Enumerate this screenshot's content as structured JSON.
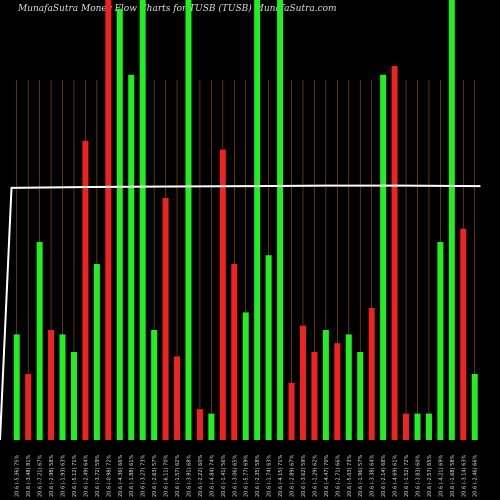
{
  "title": "MunafaSutra  Money Flow  Charts for TUSB                    (TUSB) MunafaSutra.com",
  "chart_data": {
    "type": "bar",
    "y_max": 100,
    "line_values": [
      57.3,
      57.5,
      57.6,
      57.7,
      57.8,
      57.8,
      57.7
    ],
    "categories": [
      "Fri 11 Apr 2025",
      "Tue 08 Apr 2025",
      "Fri 04 Apr 2025",
      "Wed 02 Apr 2025",
      "Mon 31 Mar 2025",
      "Thu 27 Mar 2025",
      "Tue 25 Mar 2025",
      "Fri 21 Mar 2025",
      "Wed 19 Mar 2025",
      "Mon 17 Mar 2025",
      "Thu 13 Mar 2025",
      "Tue 11 Mar 2025",
      "Fri 07 Mar 2025",
      "Wed 05 Mar 2025",
      "Mon 03 Mar 2025",
      "Thu 27 Feb 2025",
      "Tue 25 Feb 2025",
      "Fri 21 Feb 2025",
      "Wed 19 Feb 2025",
      "Fri 14 Feb 2025",
      "Wed 12 Feb 2025",
      "Mon 10 Feb 2025",
      "Thu 06 Feb 2025",
      "Tue 04 Feb 2025",
      "Fri 31 Jan 2025",
      "Wed 29 Jan 2025",
      "Mon 27 Jan 2025",
      "Thu 23 Jan 2025",
      "Tue 21 Jan 2025",
      "Fri 17 Jan 2025",
      "Wed 15 Jan 2025",
      "Mon 13 Jan 2025",
      "Thu 09 Jan 2025",
      "Tue 07 Jan 2025",
      "Fri 03 Jan 2025",
      "Tue 31 Dec 2024",
      "Fri 27 Dec 2024",
      "Tue 24 Dec 2024",
      "Fri 20 Dec 2024",
      "Wed 18 Dec 2024",
      "Mon 16 Dec 2024"
    ],
    "tick_labels": [
      "20.6 (-5.36) 75%",
      "20.6 (-3.48) 81%",
      "20.6 (-7.21) 67%",
      "20.6 (-2.98) 58%",
      "20.6 (-1.93) 63%",
      "20.6 (-5.12) 71%",
      "20.6 (-2.49) 64%",
      "20.6 (-3.72) 59%",
      "20.6 (-0.98) 72%",
      "20.6 (-4.36) 66%",
      "20.6 (-1.88) 61%",
      "20.6 (-3.27) 73%",
      "20.6 (-2.63) 57%",
      "20.6 (-6.11) 70%",
      "20.6 (-1.57) 62%",
      "20.6 (-3.91) 68%",
      "20.6 (-2.22) 60%",
      "20.6 (-4.84) 74%",
      "20.6 (-1.41) 56%",
      "20.6 (-3.06) 65%",
      "20.6 (-5.77) 69%",
      "20.6 (-2.35) 58%",
      "20.6 (-1.74) 63%",
      "20.6 (-4.15) 71%",
      "20.6 (-2.89) 67%",
      "20.6 (-3.62) 59%",
      "20.6 (-1.29) 62%",
      "20.6 (-4.47) 70%",
      "20.6 (-2.71) 66%",
      "20.6 (-5.03) 73%",
      "20.6 (-1.96) 57%",
      "20.6 (-3.38) 64%",
      "20.6 (-2.14) 68%",
      "20.6 (-4.69) 61%",
      "20.6 (-1.52) 72%",
      "20.6 (-3.83) 60%",
      "20.6 (-2.57) 65%",
      "20.6 (-4.21) 69%",
      "20.6 (-1.68) 58%",
      "20.6 (-3.14) 63%",
      "20.6 (-2.46) 66%"
    ],
    "series": [
      {
        "values": [
          24,
          15,
          45,
          25,
          24,
          20,
          68,
          40,
          100,
          98,
          83,
          100,
          25,
          55,
          19,
          100,
          7,
          6,
          66,
          40,
          29,
          100,
          42,
          100,
          13,
          26,
          20,
          25,
          22,
          24,
          20,
          30,
          83,
          85,
          6,
          6,
          6,
          45,
          100,
          48,
          15
        ],
        "colors": [
          "#22ee22",
          "#ee2222",
          "#22ee22",
          "#ee2222",
          "#22ee22",
          "#22ee22",
          "#ee2222",
          "#22ee22",
          "#ee2222",
          "#22ee22",
          "#22ee22",
          "#22ee22",
          "#22ee22",
          "#ee2222",
          "#ee2222",
          "#22ee22",
          "#ee2222",
          "#22ee22",
          "#ee2222",
          "#ee2222",
          "#22ee22",
          "#22ee22",
          "#22ee22",
          "#22ee22",
          "#ee2222",
          "#ee2222",
          "#ee2222",
          "#22ee22",
          "#ee2222",
          "#22ee22",
          "#22ee22",
          "#ee2222",
          "#22ee22",
          "#ee2222",
          "#ee2222",
          "#22ee22",
          "#22ee22",
          "#22ee22",
          "#22ee22",
          "#ee2222",
          "#22ee22"
        ]
      }
    ],
    "colors": {
      "background": "#000000",
      "gridline": "#a0521a",
      "line": "#ffffff",
      "text": "#dddddd"
    }
  }
}
